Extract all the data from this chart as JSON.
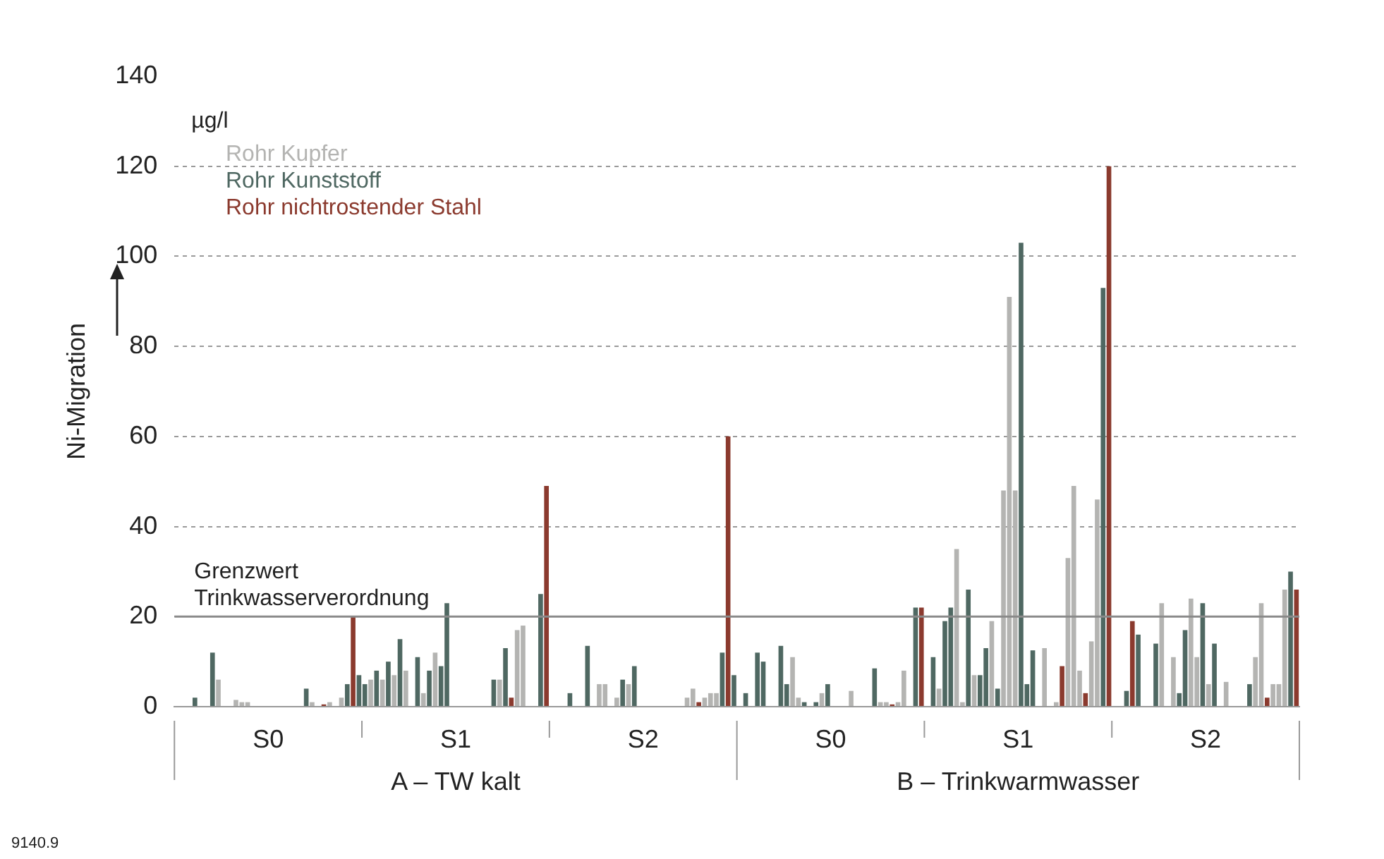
{
  "chart_data": {
    "type": "bar",
    "ylabel": "Ni-Migration",
    "ylim": [
      0,
      140
    ],
    "yticks": [
      0,
      20,
      40,
      60,
      80,
      100,
      120,
      140
    ],
    "grid": "y",
    "legend": "top left",
    "categories": [
      null,
      null,
      null,
      null,
      null,
      null,
      null,
      null,
      null,
      null,
      null,
      null,
      null,
      null,
      null,
      null,
      null,
      null,
      null,
      null,
      null,
      null,
      null,
      null,
      null,
      null,
      null,
      null,
      null,
      null,
      null,
      null,
      null,
      null,
      null,
      null,
      null,
      null,
      null,
      null,
      null,
      null,
      null,
      null,
      null,
      null,
      null,
      null,
      null,
      null,
      null,
      null,
      null,
      null,
      null,
      null,
      null,
      null,
      null,
      null,
      null,
      null,
      null,
      null,
      null,
      null,
      null,
      null,
      null,
      null,
      null,
      null,
      null,
      null,
      null,
      null,
      null,
      null,
      null,
      null,
      null,
      null,
      null,
      null,
      null,
      null,
      null,
      null,
      null,
      null,
      null,
      null,
      null,
      null,
      null,
      null,
      null,
      null,
      null,
      null,
      null,
      null,
      null,
      null,
      null,
      null,
      null,
      null,
      null,
      null,
      null,
      null,
      null,
      null,
      null,
      null,
      null,
      null,
      null,
      null,
      null,
      null,
      null,
      null,
      null,
      null,
      null,
      null,
      null,
      null,
      null,
      null,
      null,
      null,
      null,
      null,
      null,
      null,
      null,
      null,
      null,
      null,
      null,
      null,
      null,
      null,
      null,
      null,
      null,
      null,
      null,
      null,
      null,
      null,
      null,
      null,
      null,
      null,
      null,
      null,
      null,
      null,
      null,
      null,
      null,
      null,
      null,
      null,
      null,
      null,
      null,
      null,
      null,
      null,
      null,
      null,
      null,
      null,
      null,
      null,
      null,
      null,
      null,
      null,
      null,
      null,
      null,
      null,
      null,
      null,
      null,
      null
    ],
    "series": [
      {
        "name": "Rohr Kupfer",
        "color": "#b4b4b2",
        "values": [
          null,
          null,
          null,
          null,
          null,
          null,
          null,
          6,
          null,
          null,
          1.5,
          1,
          1,
          null,
          null,
          null,
          null,
          null,
          null,
          null,
          null,
          null,
          null,
          1,
          null,
          null,
          1,
          null,
          2,
          null,
          null,
          null,
          null,
          6,
          null,
          6,
          null,
          7,
          null,
          8,
          null,
          null,
          3,
          null,
          12,
          null,
          null,
          null,
          null,
          null,
          null,
          null,
          null,
          null,
          null,
          6,
          null,
          null,
          17,
          18,
          null,
          null,
          null,
          null,
          null,
          null,
          null,
          null,
          null,
          null,
          null,
          null,
          5,
          5,
          null,
          2,
          null,
          5,
          null,
          null,
          null,
          null,
          null,
          null,
          null,
          null,
          null,
          2,
          4,
          null,
          2,
          3,
          3,
          null,
          null,
          null,
          null,
          null,
          null,
          null,
          null,
          null,
          null,
          null,
          null,
          11,
          2,
          null,
          null,
          null,
          3,
          null,
          null,
          null,
          null,
          3.5,
          null,
          null,
          null,
          null,
          1,
          1,
          null,
          1,
          8,
          null,
          null,
          null,
          null,
          null,
          4,
          null,
          null,
          35,
          1,
          null,
          7,
          null,
          null,
          19,
          null,
          48,
          91,
          48,
          null,
          null,
          null,
          null,
          13,
          null,
          1,
          null,
          33,
          49,
          8,
          null,
          14.5,
          46,
          null,
          null,
          null,
          null,
          null,
          null,
          null,
          null,
          null,
          null,
          23,
          null,
          11,
          null,
          null,
          24,
          11,
          null,
          5,
          null,
          null,
          5.5,
          null,
          null,
          null,
          null,
          11,
          23,
          null,
          5,
          5,
          26,
          null,
          null
        ]
      },
      {
        "name": "Rohr Kunststoff",
        "color": "#4f6862",
        "values": [
          null,
          null,
          null,
          2,
          null,
          null,
          12,
          null,
          null,
          null,
          null,
          null,
          null,
          null,
          null,
          null,
          null,
          null,
          null,
          null,
          null,
          null,
          4,
          null,
          null,
          null,
          null,
          null,
          null,
          5,
          null,
          7,
          5,
          null,
          8,
          null,
          10,
          null,
          15,
          null,
          null,
          11,
          null,
          8,
          null,
          9,
          23,
          null,
          null,
          null,
          null,
          null,
          null,
          null,
          6,
          null,
          13,
          null,
          null,
          null,
          null,
          null,
          25,
          null,
          null,
          null,
          null,
          3,
          null,
          null,
          13.5,
          null,
          null,
          null,
          null,
          null,
          6,
          null,
          9,
          null,
          null,
          null,
          null,
          null,
          null,
          null,
          null,
          null,
          null,
          null,
          null,
          null,
          null,
          12,
          null,
          7,
          null,
          3,
          null,
          12,
          10,
          null,
          null,
          13.5,
          5,
          null,
          null,
          1,
          null,
          1,
          null,
          5,
          null,
          null,
          null,
          null,
          null,
          null,
          null,
          8.5,
          null,
          null,
          null,
          null,
          null,
          null,
          22,
          null,
          null,
          11,
          null,
          19,
          22,
          null,
          null,
          26,
          null,
          7,
          13,
          null,
          4,
          null,
          null,
          null,
          103,
          5,
          12.5,
          null,
          null,
          null,
          null,
          null,
          null,
          null,
          null,
          null,
          null,
          null,
          93,
          null,
          null,
          null,
          3.5,
          null,
          16,
          null,
          null,
          14,
          null,
          null,
          null,
          3,
          17,
          null,
          null,
          23,
          null,
          14,
          null,
          null,
          null,
          null,
          null,
          5,
          null,
          null,
          null,
          null,
          null,
          null,
          30,
          null
        ]
      },
      {
        "name": "Rohr nichtrostender Stahl",
        "color": "#8b3a2e",
        "values": [
          null,
          null,
          null,
          null,
          null,
          null,
          null,
          null,
          null,
          null,
          null,
          null,
          null,
          null,
          null,
          null,
          null,
          null,
          null,
          null,
          null,
          null,
          null,
          null,
          null,
          0.5,
          null,
          null,
          null,
          null,
          20,
          null,
          null,
          null,
          null,
          null,
          null,
          null,
          null,
          null,
          null,
          null,
          null,
          null,
          null,
          null,
          null,
          null,
          null,
          null,
          null,
          null,
          null,
          null,
          null,
          null,
          null,
          2,
          null,
          null,
          null,
          null,
          null,
          49,
          null,
          null,
          null,
          null,
          null,
          null,
          null,
          null,
          null,
          null,
          null,
          null,
          null,
          null,
          null,
          null,
          null,
          null,
          null,
          null,
          null,
          null,
          null,
          null,
          null,
          1,
          null,
          null,
          null,
          null,
          60,
          null,
          null,
          null,
          null,
          null,
          null,
          null,
          null,
          null,
          null,
          null,
          null,
          null,
          null,
          null,
          null,
          null,
          null,
          null,
          null,
          null,
          null,
          null,
          null,
          null,
          null,
          null,
          0.5,
          null,
          null,
          null,
          null,
          22,
          null,
          null,
          null,
          null,
          null,
          null,
          null,
          null,
          null,
          null,
          null,
          null,
          null,
          null,
          null,
          null,
          null,
          null,
          null,
          null,
          null,
          null,
          null,
          9,
          null,
          null,
          null,
          3,
          null,
          null,
          null,
          120,
          null,
          null,
          null,
          19,
          null,
          null,
          null,
          null,
          null,
          null,
          null,
          null,
          null,
          null,
          null,
          null,
          null,
          null,
          null,
          null,
          null,
          null,
          null,
          null,
          null,
          null,
          2,
          null,
          null,
          null,
          null,
          26
        ]
      }
    ],
    "ref_lines": [
      {
        "axis": "y",
        "value": 20,
        "label": "Grenzwert Trinkwasserverordnung",
        "color": "#8a8a8a"
      }
    ],
    "annotations": [
      "µg/l",
      "S0",
      "S1",
      "S2",
      "S0",
      "S1",
      "S2",
      "A – TW kalt",
      "B – Trinkwarmwasser",
      "9140.9"
    ]
  }
}
